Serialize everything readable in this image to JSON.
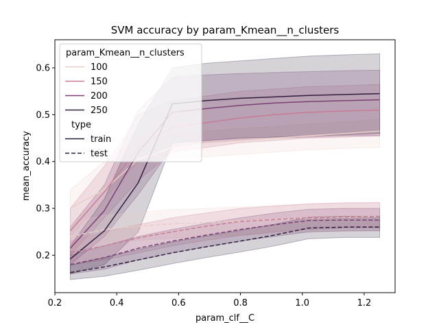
{
  "chart_data": {
    "type": "line",
    "title": "SVM accuracy by param_Kmean__n_clusters",
    "xlabel": "param_clf__C",
    "ylabel": "mean_accuracy",
    "xlim": [
      0.2,
      1.3
    ],
    "ylim": [
      0.12,
      0.66
    ],
    "xticks": [
      "0.2",
      "0.4",
      "0.6",
      "0.8",
      "1.0",
      "1.2"
    ],
    "yticks": [
      "0.2",
      "0.3",
      "0.4",
      "0.5",
      "0.6"
    ],
    "x": [
      0.25,
      0.36,
      0.47,
      0.58,
      0.69,
      0.8,
      0.91,
      1.02,
      1.14,
      1.25
    ],
    "legend": {
      "placement": "upper-left",
      "hue_title": "param_Kmean__n_clusters",
      "style_title": "type",
      "hue_entries": [
        "100",
        "150",
        "200",
        "250"
      ],
      "style_entries": [
        "train",
        "test"
      ]
    },
    "series": [
      {
        "name": "100",
        "type": "train",
        "color": "#ebcdc8",
        "values": [
          0.3,
          0.34,
          0.405,
          0.43,
          0.44,
          0.445,
          0.45,
          0.455,
          0.46,
          0.465
        ],
        "band_lower": [
          0.24,
          0.32,
          0.4,
          0.405,
          0.41,
          0.415,
          0.42,
          0.425,
          0.428,
          0.43
        ],
        "band_upper": [
          0.34,
          0.4,
          0.45,
          0.46,
          0.465,
          0.47,
          0.475,
          0.48,
          0.485,
          0.49
        ]
      },
      {
        "name": "150",
        "type": "train",
        "color": "#c97b96",
        "values": [
          0.252,
          0.335,
          0.43,
          0.473,
          0.483,
          0.493,
          0.5,
          0.505,
          0.508,
          0.51
        ],
        "band_lower": [
          0.2,
          0.28,
          0.36,
          0.42,
          0.43,
          0.44,
          0.445,
          0.45,
          0.452,
          0.455
        ],
        "band_upper": [
          0.3,
          0.39,
          0.5,
          0.53,
          0.54,
          0.55,
          0.555,
          0.56,
          0.562,
          0.565
        ]
      },
      {
        "name": "200",
        "type": "train",
        "color": "#7b3f74",
        "values": [
          0.215,
          0.295,
          0.42,
          0.505,
          0.513,
          0.52,
          0.525,
          0.528,
          0.53,
          0.532
        ],
        "band_lower": [
          0.18,
          0.24,
          0.33,
          0.43,
          0.44,
          0.445,
          0.45,
          0.452,
          0.455,
          0.455
        ],
        "band_upper": [
          0.26,
          0.35,
          0.51,
          0.58,
          0.585,
          0.588,
          0.59,
          0.592,
          0.594,
          0.595
        ]
      },
      {
        "name": "250",
        "type": "train",
        "color": "#2d1e3e",
        "values": [
          0.192,
          0.252,
          0.355,
          0.523,
          0.53,
          0.535,
          0.538,
          0.541,
          0.543,
          0.545
        ],
        "band_lower": [
          0.16,
          0.18,
          0.25,
          0.44,
          0.445,
          0.45,
          0.452,
          0.455,
          0.457,
          0.46
        ],
        "band_upper": [
          0.22,
          0.32,
          0.48,
          0.6,
          0.61,
          0.615,
          0.62,
          0.625,
          0.628,
          0.63
        ]
      },
      {
        "name": "100",
        "type": "test",
        "color": "#ebcdc8",
        "values": [
          0.24,
          0.255,
          0.262,
          0.267,
          0.27,
          0.273,
          0.276,
          0.279,
          0.281,
          0.283
        ],
        "band_lower": [
          0.21,
          0.225,
          0.232,
          0.237,
          0.24,
          0.243,
          0.246,
          0.249,
          0.251,
          0.253
        ],
        "band_upper": [
          0.27,
          0.285,
          0.292,
          0.297,
          0.3,
          0.303,
          0.306,
          0.309,
          0.311,
          0.313
        ]
      },
      {
        "name": "150",
        "type": "test",
        "color": "#c97b96",
        "values": [
          0.205,
          0.22,
          0.237,
          0.25,
          0.262,
          0.272,
          0.276,
          0.28,
          0.282,
          0.283
        ],
        "band_lower": [
          0.18,
          0.19,
          0.205,
          0.22,
          0.232,
          0.242,
          0.25,
          0.255,
          0.258,
          0.258
        ],
        "band_upper": [
          0.23,
          0.25,
          0.265,
          0.28,
          0.29,
          0.3,
          0.305,
          0.31,
          0.312,
          0.312
        ]
      },
      {
        "name": "200",
        "type": "test",
        "color": "#7b3f74",
        "values": [
          0.18,
          0.195,
          0.215,
          0.23,
          0.243,
          0.255,
          0.265,
          0.274,
          0.275,
          0.275
        ],
        "band_lower": [
          0.16,
          0.17,
          0.19,
          0.205,
          0.218,
          0.23,
          0.24,
          0.25,
          0.252,
          0.252
        ],
        "band_upper": [
          0.2,
          0.22,
          0.24,
          0.255,
          0.268,
          0.28,
          0.29,
          0.298,
          0.3,
          0.3
        ]
      },
      {
        "name": "250",
        "type": "test",
        "color": "#2d1e3e",
        "values": [
          0.163,
          0.175,
          0.19,
          0.205,
          0.218,
          0.23,
          0.243,
          0.258,
          0.26,
          0.26
        ],
        "band_lower": [
          0.148,
          0.155,
          0.168,
          0.182,
          0.195,
          0.207,
          0.22,
          0.235,
          0.238,
          0.238
        ],
        "band_upper": [
          0.178,
          0.195,
          0.212,
          0.228,
          0.241,
          0.253,
          0.266,
          0.281,
          0.283,
          0.283
        ]
      }
    ]
  }
}
